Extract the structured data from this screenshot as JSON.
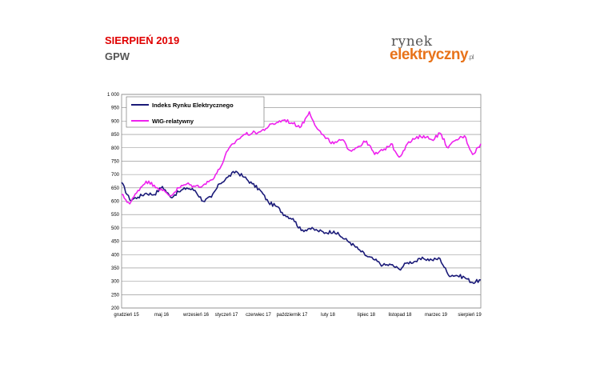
{
  "header": {
    "title": "SIERPIEŃ 2019",
    "subtitle": "GPW"
  },
  "logo": {
    "top": "rynek",
    "bottom": "elektryczny",
    "tld": ".pl"
  },
  "colors": {
    "series_1": "#1a1a78",
    "series_2": "#ee22ee",
    "grid": "#888888",
    "logo_accent": "#e8731a",
    "title_red": "#e00000"
  },
  "chart_data": {
    "type": "line",
    "title": "",
    "xlabel": "",
    "ylabel": "",
    "ylim": [
      200,
      1000
    ],
    "grid": true,
    "legend_position": "top-left",
    "y_ticks": [
      "1 000",
      "950",
      "900",
      "850",
      "800",
      "750",
      "700",
      "650",
      "600",
      "550",
      "500",
      "450",
      "400",
      "350",
      "300",
      "250",
      "200"
    ],
    "x_ticks": [
      "grudzień 15",
      "maj 16",
      "wrzesień 16",
      "styczeń 17",
      "czerwiec 17",
      "październik 17",
      "luty 18",
      "lipiec 18",
      "listopad 18",
      "marzec 19",
      "sierpień 19"
    ],
    "x_domain": [
      "2015-12",
      "2019-08"
    ],
    "series": [
      {
        "name": "Indeks Rynku Elektrycznego",
        "points": [
          [
            "2015-12",
            670
          ],
          [
            "2016-01",
            605
          ],
          [
            "2016-02",
            615
          ],
          [
            "2016-03",
            630
          ],
          [
            "2016-04",
            625
          ],
          [
            "2016-05",
            655
          ],
          [
            "2016-06",
            615
          ],
          [
            "2016-07",
            635
          ],
          [
            "2016-08",
            650
          ],
          [
            "2016-09",
            640
          ],
          [
            "2016-10",
            600
          ],
          [
            "2016-11",
            615
          ],
          [
            "2016-12",
            665
          ],
          [
            "2017-01",
            690
          ],
          [
            "2017-02",
            712
          ],
          [
            "2017-03",
            690
          ],
          [
            "2017-04",
            665
          ],
          [
            "2017-05",
            640
          ],
          [
            "2017-06",
            595
          ],
          [
            "2017-07",
            580
          ],
          [
            "2017-08",
            548
          ],
          [
            "2017-09",
            535
          ],
          [
            "2017-10",
            490
          ],
          [
            "2017-11",
            498
          ],
          [
            "2017-12",
            490
          ],
          [
            "2018-01",
            482
          ],
          [
            "2018-02",
            488
          ],
          [
            "2018-03",
            465
          ],
          [
            "2018-04",
            445
          ],
          [
            "2018-05",
            420
          ],
          [
            "2018-06",
            395
          ],
          [
            "2018-07",
            380
          ],
          [
            "2018-08",
            360
          ],
          [
            "2018-09",
            362
          ],
          [
            "2018-10",
            345
          ],
          [
            "2018-11",
            370
          ],
          [
            "2018-12",
            375
          ],
          [
            "2019-01",
            385
          ],
          [
            "2019-02",
            380
          ],
          [
            "2019-03",
            385
          ],
          [
            "2019-04",
            325
          ],
          [
            "2019-05",
            322
          ],
          [
            "2019-06",
            315
          ],
          [
            "2019-07",
            295
          ],
          [
            "2019-08",
            305
          ]
        ]
      },
      {
        "name": "WIG-relatywny",
        "points": [
          [
            "2015-12",
            625
          ],
          [
            "2016-01",
            590
          ],
          [
            "2016-02",
            640
          ],
          [
            "2016-03",
            675
          ],
          [
            "2016-04",
            660
          ],
          [
            "2016-05",
            640
          ],
          [
            "2016-06",
            620
          ],
          [
            "2016-07",
            650
          ],
          [
            "2016-08",
            665
          ],
          [
            "2016-09",
            655
          ],
          [
            "2016-10",
            660
          ],
          [
            "2016-11",
            680
          ],
          [
            "2016-12",
            720
          ],
          [
            "2017-01",
            790
          ],
          [
            "2017-02",
            825
          ],
          [
            "2017-03",
            850
          ],
          [
            "2017-04",
            855
          ],
          [
            "2017-05",
            860
          ],
          [
            "2017-06",
            880
          ],
          [
            "2017-07",
            895
          ],
          [
            "2017-08",
            905
          ],
          [
            "2017-09",
            890
          ],
          [
            "2017-10",
            880
          ],
          [
            "2017-11",
            935
          ],
          [
            "2017-12",
            870
          ],
          [
            "2018-01",
            835
          ],
          [
            "2018-02",
            815
          ],
          [
            "2018-03",
            830
          ],
          [
            "2018-04",
            790
          ],
          [
            "2018-05",
            805
          ],
          [
            "2018-06",
            825
          ],
          [
            "2018-07",
            775
          ],
          [
            "2018-08",
            790
          ],
          [
            "2018-09",
            815
          ],
          [
            "2018-10",
            765
          ],
          [
            "2018-11",
            815
          ],
          [
            "2018-12",
            835
          ],
          [
            "2019-01",
            845
          ],
          [
            "2019-02",
            830
          ],
          [
            "2019-03",
            855
          ],
          [
            "2019-04",
            800
          ],
          [
            "2019-05",
            830
          ],
          [
            "2019-06",
            845
          ],
          [
            "2019-07",
            775
          ],
          [
            "2019-08",
            815
          ]
        ]
      }
    ]
  }
}
